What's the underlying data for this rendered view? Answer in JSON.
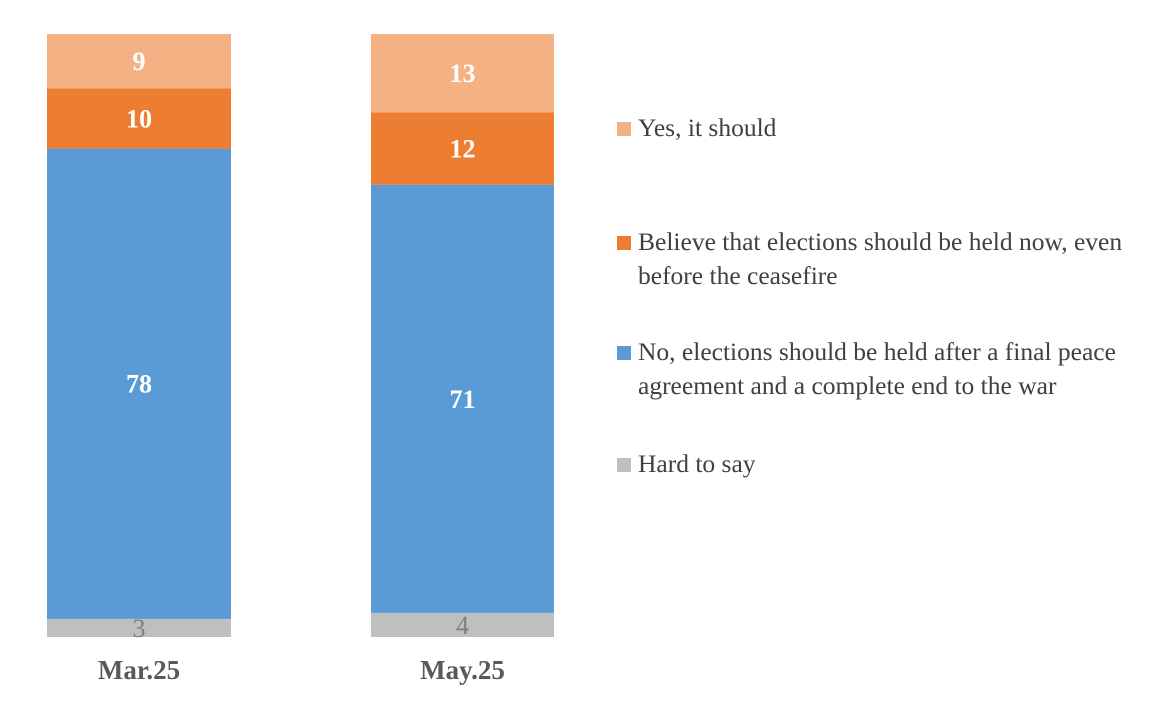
{
  "chart_data": {
    "type": "bar",
    "stacked": true,
    "categories": [
      "Mar.25",
      "May.25"
    ],
    "series": [
      {
        "name": "Hard to say",
        "values": [
          3,
          4
        ],
        "color": "#BFBFBF",
        "label_color": "#7F7F7F",
        "label_bold": false
      },
      {
        "name": "No, elections should be held after a final peace agreement and a complete end to the war",
        "values": [
          78,
          71
        ],
        "color": "#5B9BD5",
        "label_color": "#FFFFFF",
        "label_bold": true
      },
      {
        "name": "Believe that elections should be held now, even before the ceasefire",
        "values": [
          10,
          12
        ],
        "color": "#ED7D31",
        "label_color": "#FFFFFF",
        "label_bold": true
      },
      {
        "name": "Yes, it should",
        "values": [
          9,
          13
        ],
        "color": "#F4B183",
        "label_color": "#FFFFFF",
        "label_bold": true
      }
    ],
    "legend_order": [
      3,
      2,
      1,
      0
    ],
    "legend_position": "right",
    "ylim": [
      0,
      100
    ],
    "grid": false,
    "title": "",
    "xlabel": "",
    "ylabel": ""
  }
}
